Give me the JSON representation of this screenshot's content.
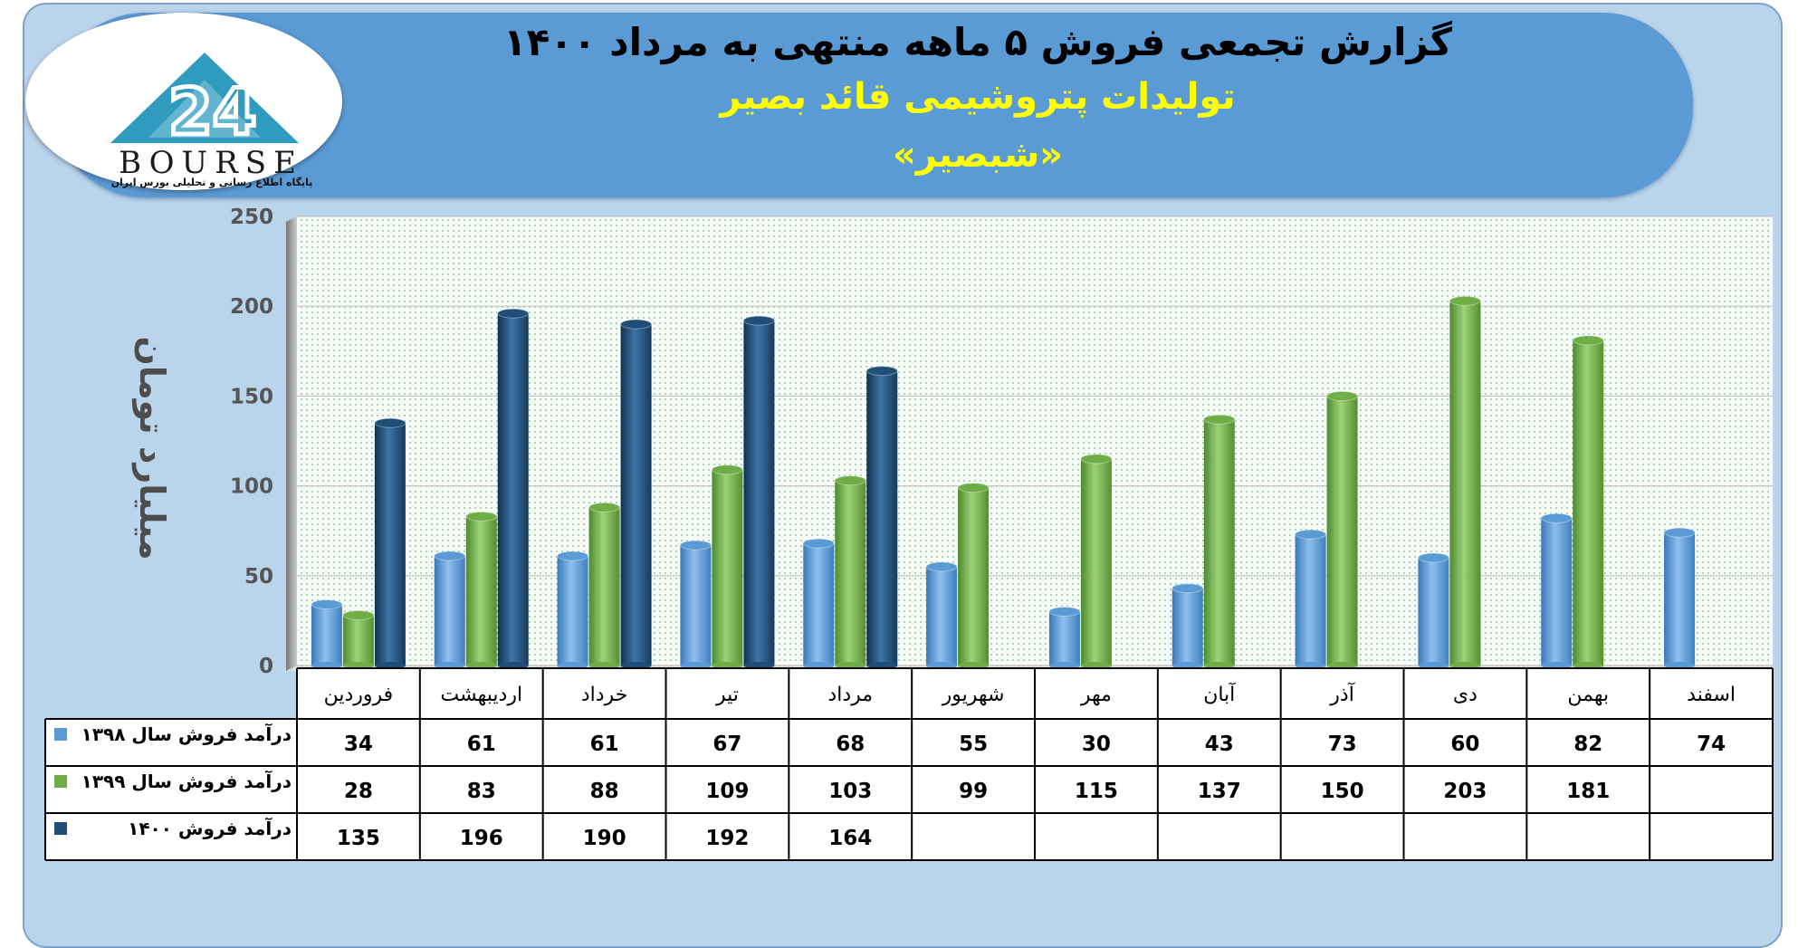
{
  "report": {
    "title": "گزارش تجمعی فروش ۵ ماهه منتهی به مرداد ۱۴۰۰",
    "subtitle": "تولیدات پتروشیمی قائد بصیر",
    "symbol": "«شبصیر»"
  },
  "logo": {
    "text": "BOURSE",
    "caption": "پایگاه اطلاع رسانی و تحلیلی بورس ایران",
    "icon": "bourse-24-triangle-logo"
  },
  "colors": {
    "series_1398": "#5b9bd5",
    "series_1399": "#70ad47",
    "series_1400": "#1f4e79",
    "banner": "#5b9bd5",
    "background": "#bad4ec",
    "title": "#000000",
    "subtitle": "#ffff00"
  },
  "chart_data": {
    "type": "bar",
    "ylabel": "میلیارد تومان",
    "ylim": [
      0,
      250
    ],
    "yticks": [
      0,
      50,
      100,
      150,
      200,
      250
    ],
    "grid": true,
    "legend": "data-table-left",
    "categories": [
      "فروردین",
      "اردیبهشت",
      "خرداد",
      "تیر",
      "مرداد",
      "شهریور",
      "مهر",
      "آبان",
      "آذر",
      "دی",
      "بهمن",
      "اسفند"
    ],
    "series": [
      {
        "name": "درآمد فروش سال ۱۳۹۸",
        "values": [
          34,
          61,
          61,
          67,
          68,
          55,
          30,
          43,
          73,
          60,
          82,
          74
        ]
      },
      {
        "name": "درآمد فروش سال ۱۳۹۹",
        "values": [
          28,
          83,
          88,
          109,
          103,
          99,
          115,
          137,
          150,
          203,
          181,
          null
        ]
      },
      {
        "name": "درآمد فروش ۱۴۰۰",
        "values": [
          135,
          196,
          190,
          192,
          164,
          null,
          null,
          null,
          null,
          null,
          null,
          null
        ]
      }
    ]
  }
}
